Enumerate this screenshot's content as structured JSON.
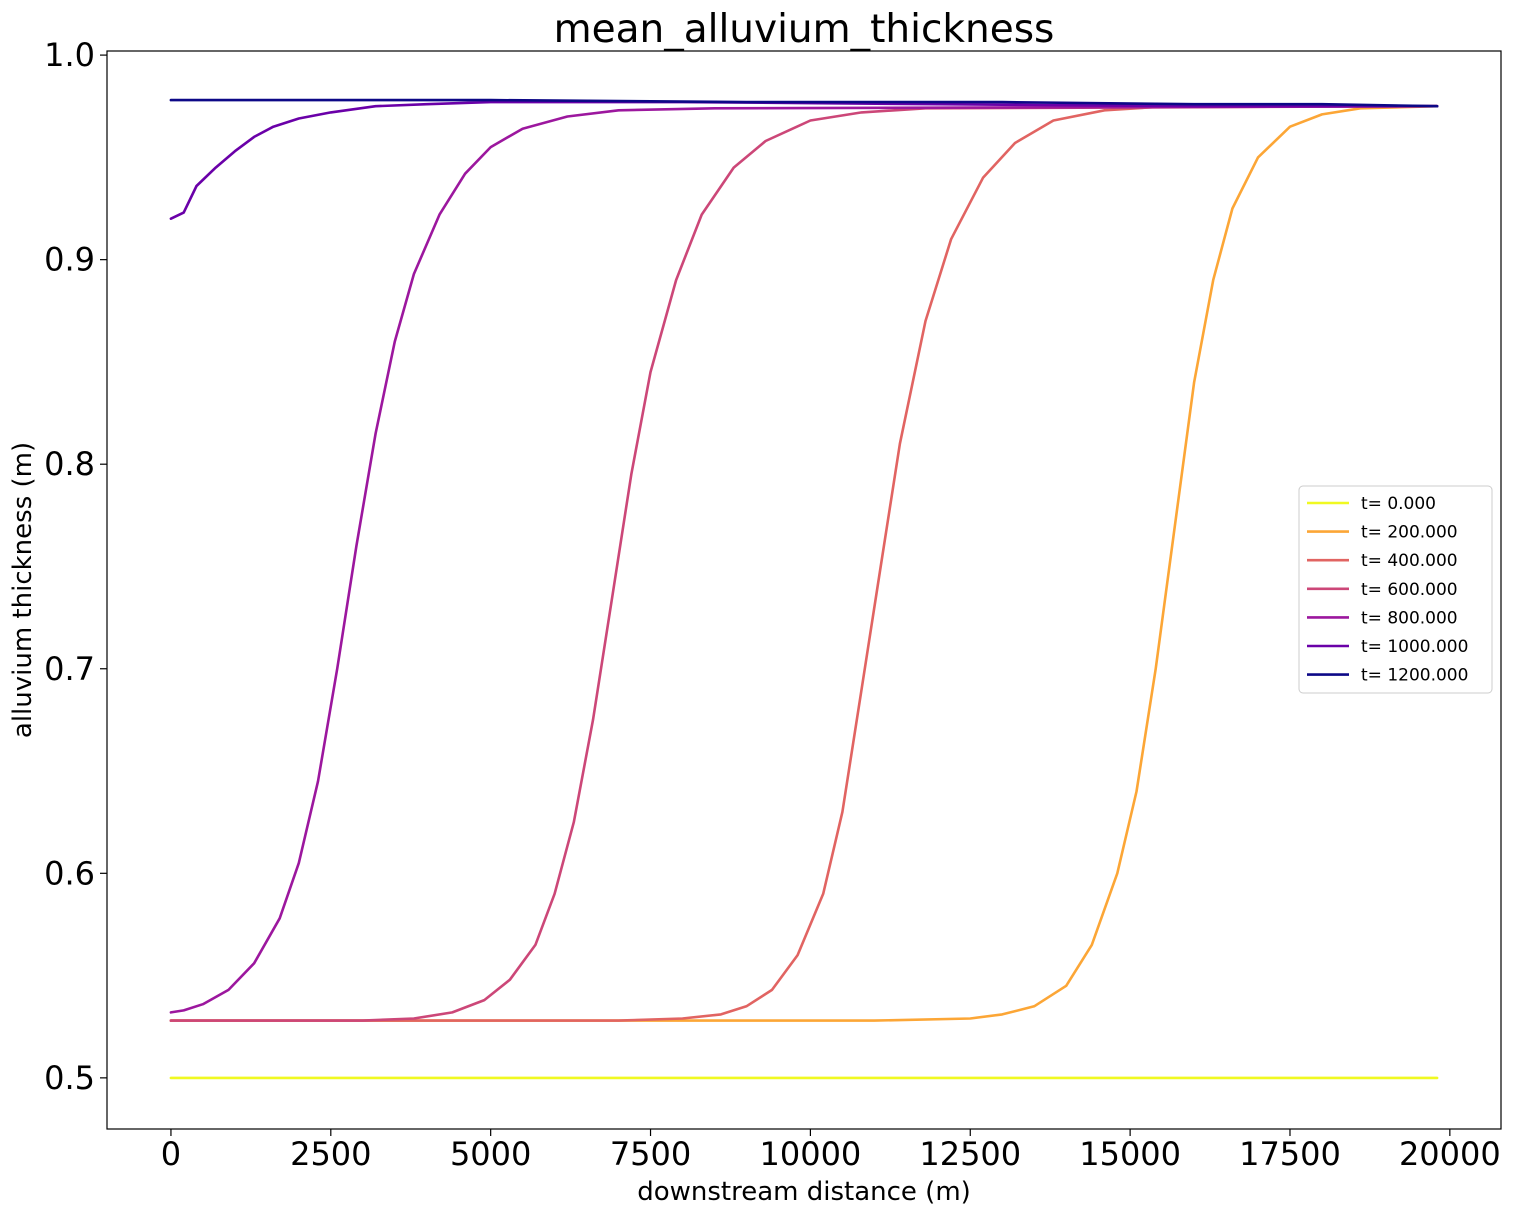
{
  "chart_data": {
    "type": "line",
    "title": "mean_alluvium_thickness",
    "xlabel": "downstream distance (m)",
    "ylabel": "alluvium thickness (m)",
    "xlim": [
      -1000,
      20800
    ],
    "ylim": [
      0.475,
      1.002
    ],
    "xticks": [
      0,
      2500,
      5000,
      7500,
      10000,
      12500,
      15000,
      17500,
      20000
    ],
    "yticks": [
      0.5,
      0.6,
      0.7,
      0.8,
      0.9,
      1.0
    ],
    "xtick_labels": [
      "0",
      "2500",
      "5000",
      "7500",
      "10000",
      "12500",
      "15000",
      "17500",
      "20000"
    ],
    "ytick_labels": [
      "0.5",
      "0.6",
      "0.7",
      "0.8",
      "0.9",
      "1.0"
    ],
    "grid": false,
    "legend_position": "center-right",
    "series": [
      {
        "name": "t= 0.000",
        "color": "#f0f921",
        "points": [
          [
            0,
            0.5
          ],
          [
            19800,
            0.5
          ]
        ]
      },
      {
        "name": "t= 200.000",
        "color": "#fca636",
        "points": [
          [
            0,
            0.528
          ],
          [
            11000,
            0.528
          ],
          [
            12500,
            0.529
          ],
          [
            13000,
            0.531
          ],
          [
            13500,
            0.535
          ],
          [
            14000,
            0.545
          ],
          [
            14400,
            0.565
          ],
          [
            14800,
            0.6
          ],
          [
            15100,
            0.64
          ],
          [
            15400,
            0.7
          ],
          [
            15700,
            0.77
          ],
          [
            16000,
            0.84
          ],
          [
            16300,
            0.89
          ],
          [
            16600,
            0.925
          ],
          [
            17000,
            0.95
          ],
          [
            17500,
            0.965
          ],
          [
            18000,
            0.971
          ],
          [
            18600,
            0.974
          ],
          [
            19800,
            0.975
          ]
        ]
      },
      {
        "name": "t= 400.000",
        "color": "#e16462",
        "points": [
          [
            0,
            0.528
          ],
          [
            7000,
            0.528
          ],
          [
            8000,
            0.529
          ],
          [
            8600,
            0.531
          ],
          [
            9000,
            0.535
          ],
          [
            9400,
            0.543
          ],
          [
            9800,
            0.56
          ],
          [
            10200,
            0.59
          ],
          [
            10500,
            0.63
          ],
          [
            10800,
            0.69
          ],
          [
            11100,
            0.75
          ],
          [
            11400,
            0.81
          ],
          [
            11800,
            0.87
          ],
          [
            12200,
            0.91
          ],
          [
            12700,
            0.94
          ],
          [
            13200,
            0.957
          ],
          [
            13800,
            0.968
          ],
          [
            14600,
            0.973
          ],
          [
            15600,
            0.975
          ],
          [
            19800,
            0.975
          ]
        ]
      },
      {
        "name": "t= 600.000",
        "color": "#cc4778",
        "points": [
          [
            0,
            0.528
          ],
          [
            3000,
            0.528
          ],
          [
            3800,
            0.529
          ],
          [
            4400,
            0.532
          ],
          [
            4900,
            0.538
          ],
          [
            5300,
            0.548
          ],
          [
            5700,
            0.565
          ],
          [
            6000,
            0.59
          ],
          [
            6300,
            0.625
          ],
          [
            6600,
            0.675
          ],
          [
            6900,
            0.735
          ],
          [
            7200,
            0.795
          ],
          [
            7500,
            0.845
          ],
          [
            7900,
            0.89
          ],
          [
            8300,
            0.922
          ],
          [
            8800,
            0.945
          ],
          [
            9300,
            0.958
          ],
          [
            10000,
            0.968
          ],
          [
            10800,
            0.972
          ],
          [
            11800,
            0.974
          ],
          [
            19800,
            0.975
          ]
        ]
      },
      {
        "name": "t= 800.000",
        "color": "#9c179e",
        "points": [
          [
            0,
            0.532
          ],
          [
            200,
            0.533
          ],
          [
            500,
            0.536
          ],
          [
            900,
            0.543
          ],
          [
            1300,
            0.556
          ],
          [
            1700,
            0.578
          ],
          [
            2000,
            0.605
          ],
          [
            2300,
            0.645
          ],
          [
            2600,
            0.7
          ],
          [
            2900,
            0.76
          ],
          [
            3200,
            0.815
          ],
          [
            3500,
            0.86
          ],
          [
            3800,
            0.893
          ],
          [
            4200,
            0.922
          ],
          [
            4600,
            0.942
          ],
          [
            5000,
            0.955
          ],
          [
            5500,
            0.964
          ],
          [
            6200,
            0.97
          ],
          [
            7000,
            0.973
          ],
          [
            8500,
            0.974
          ],
          [
            19800,
            0.975
          ]
        ]
      },
      {
        "name": "t= 1000.000",
        "color": "#6a00a8",
        "points": [
          [
            0,
            0.92
          ],
          [
            200,
            0.923
          ],
          [
            400,
            0.936
          ],
          [
            700,
            0.945
          ],
          [
            1000,
            0.953
          ],
          [
            1300,
            0.96
          ],
          [
            1600,
            0.965
          ],
          [
            2000,
            0.969
          ],
          [
            2500,
            0.972
          ],
          [
            3200,
            0.975
          ],
          [
            4000,
            0.976
          ],
          [
            5000,
            0.977
          ],
          [
            8000,
            0.977
          ],
          [
            12000,
            0.976
          ],
          [
            16000,
            0.975
          ],
          [
            19800,
            0.975
          ]
        ]
      },
      {
        "name": "t= 1200.000",
        "color": "#0d0887",
        "points": [
          [
            0,
            0.978
          ],
          [
            1000,
            0.978
          ],
          [
            2000,
            0.978
          ],
          [
            5000,
            0.978
          ],
          [
            9000,
            0.977
          ],
          [
            13000,
            0.977
          ],
          [
            16000,
            0.976
          ],
          [
            18000,
            0.976
          ],
          [
            19800,
            0.975
          ]
        ]
      }
    ]
  }
}
